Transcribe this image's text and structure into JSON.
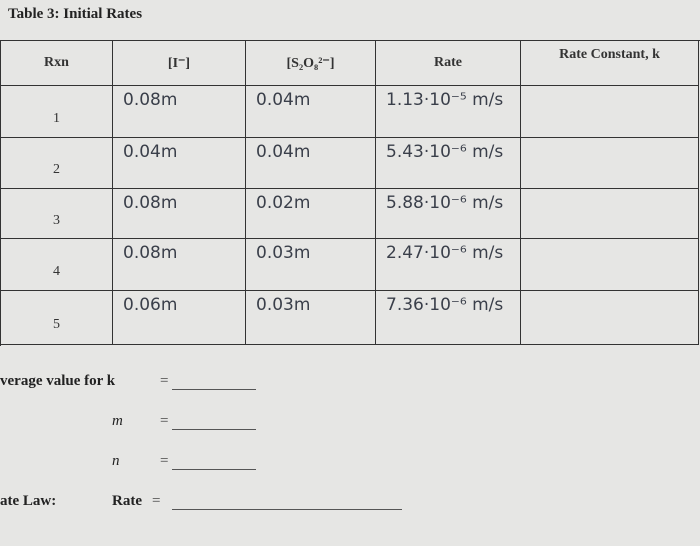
{
  "title": "Table 3: Initial Rates",
  "table": {
    "headers": [
      "Rxn",
      "[I⁻]",
      "[S₂O₈²⁻]",
      "Rate",
      "Rate Constant, k"
    ],
    "rows": [
      [
        "1",
        "0.08m",
        "0.04m",
        "1.13·10⁻⁵ m/s",
        ""
      ],
      [
        "2",
        "0.04m",
        "0.04m",
        "5.43·10⁻⁶ m/s",
        ""
      ],
      [
        "3",
        "0.08m",
        "0.02m",
        "5.88·10⁻⁶ m/s",
        ""
      ],
      [
        "4",
        "0.08m",
        "0.03m",
        "2.47·10⁻⁶ m/s",
        ""
      ],
      [
        "5",
        "0.06m",
        "0.03m",
        "7.36·10⁻⁶ m/s",
        ""
      ]
    ]
  },
  "fields": [
    {
      "label": "verage value for k",
      "sign": "="
    },
    {
      "label": "m",
      "sign": "="
    },
    {
      "label": "n",
      "sign": "="
    }
  ],
  "rate_law": {
    "label": "ate Law:",
    "lhs": "Rate",
    "sign": "="
  }
}
